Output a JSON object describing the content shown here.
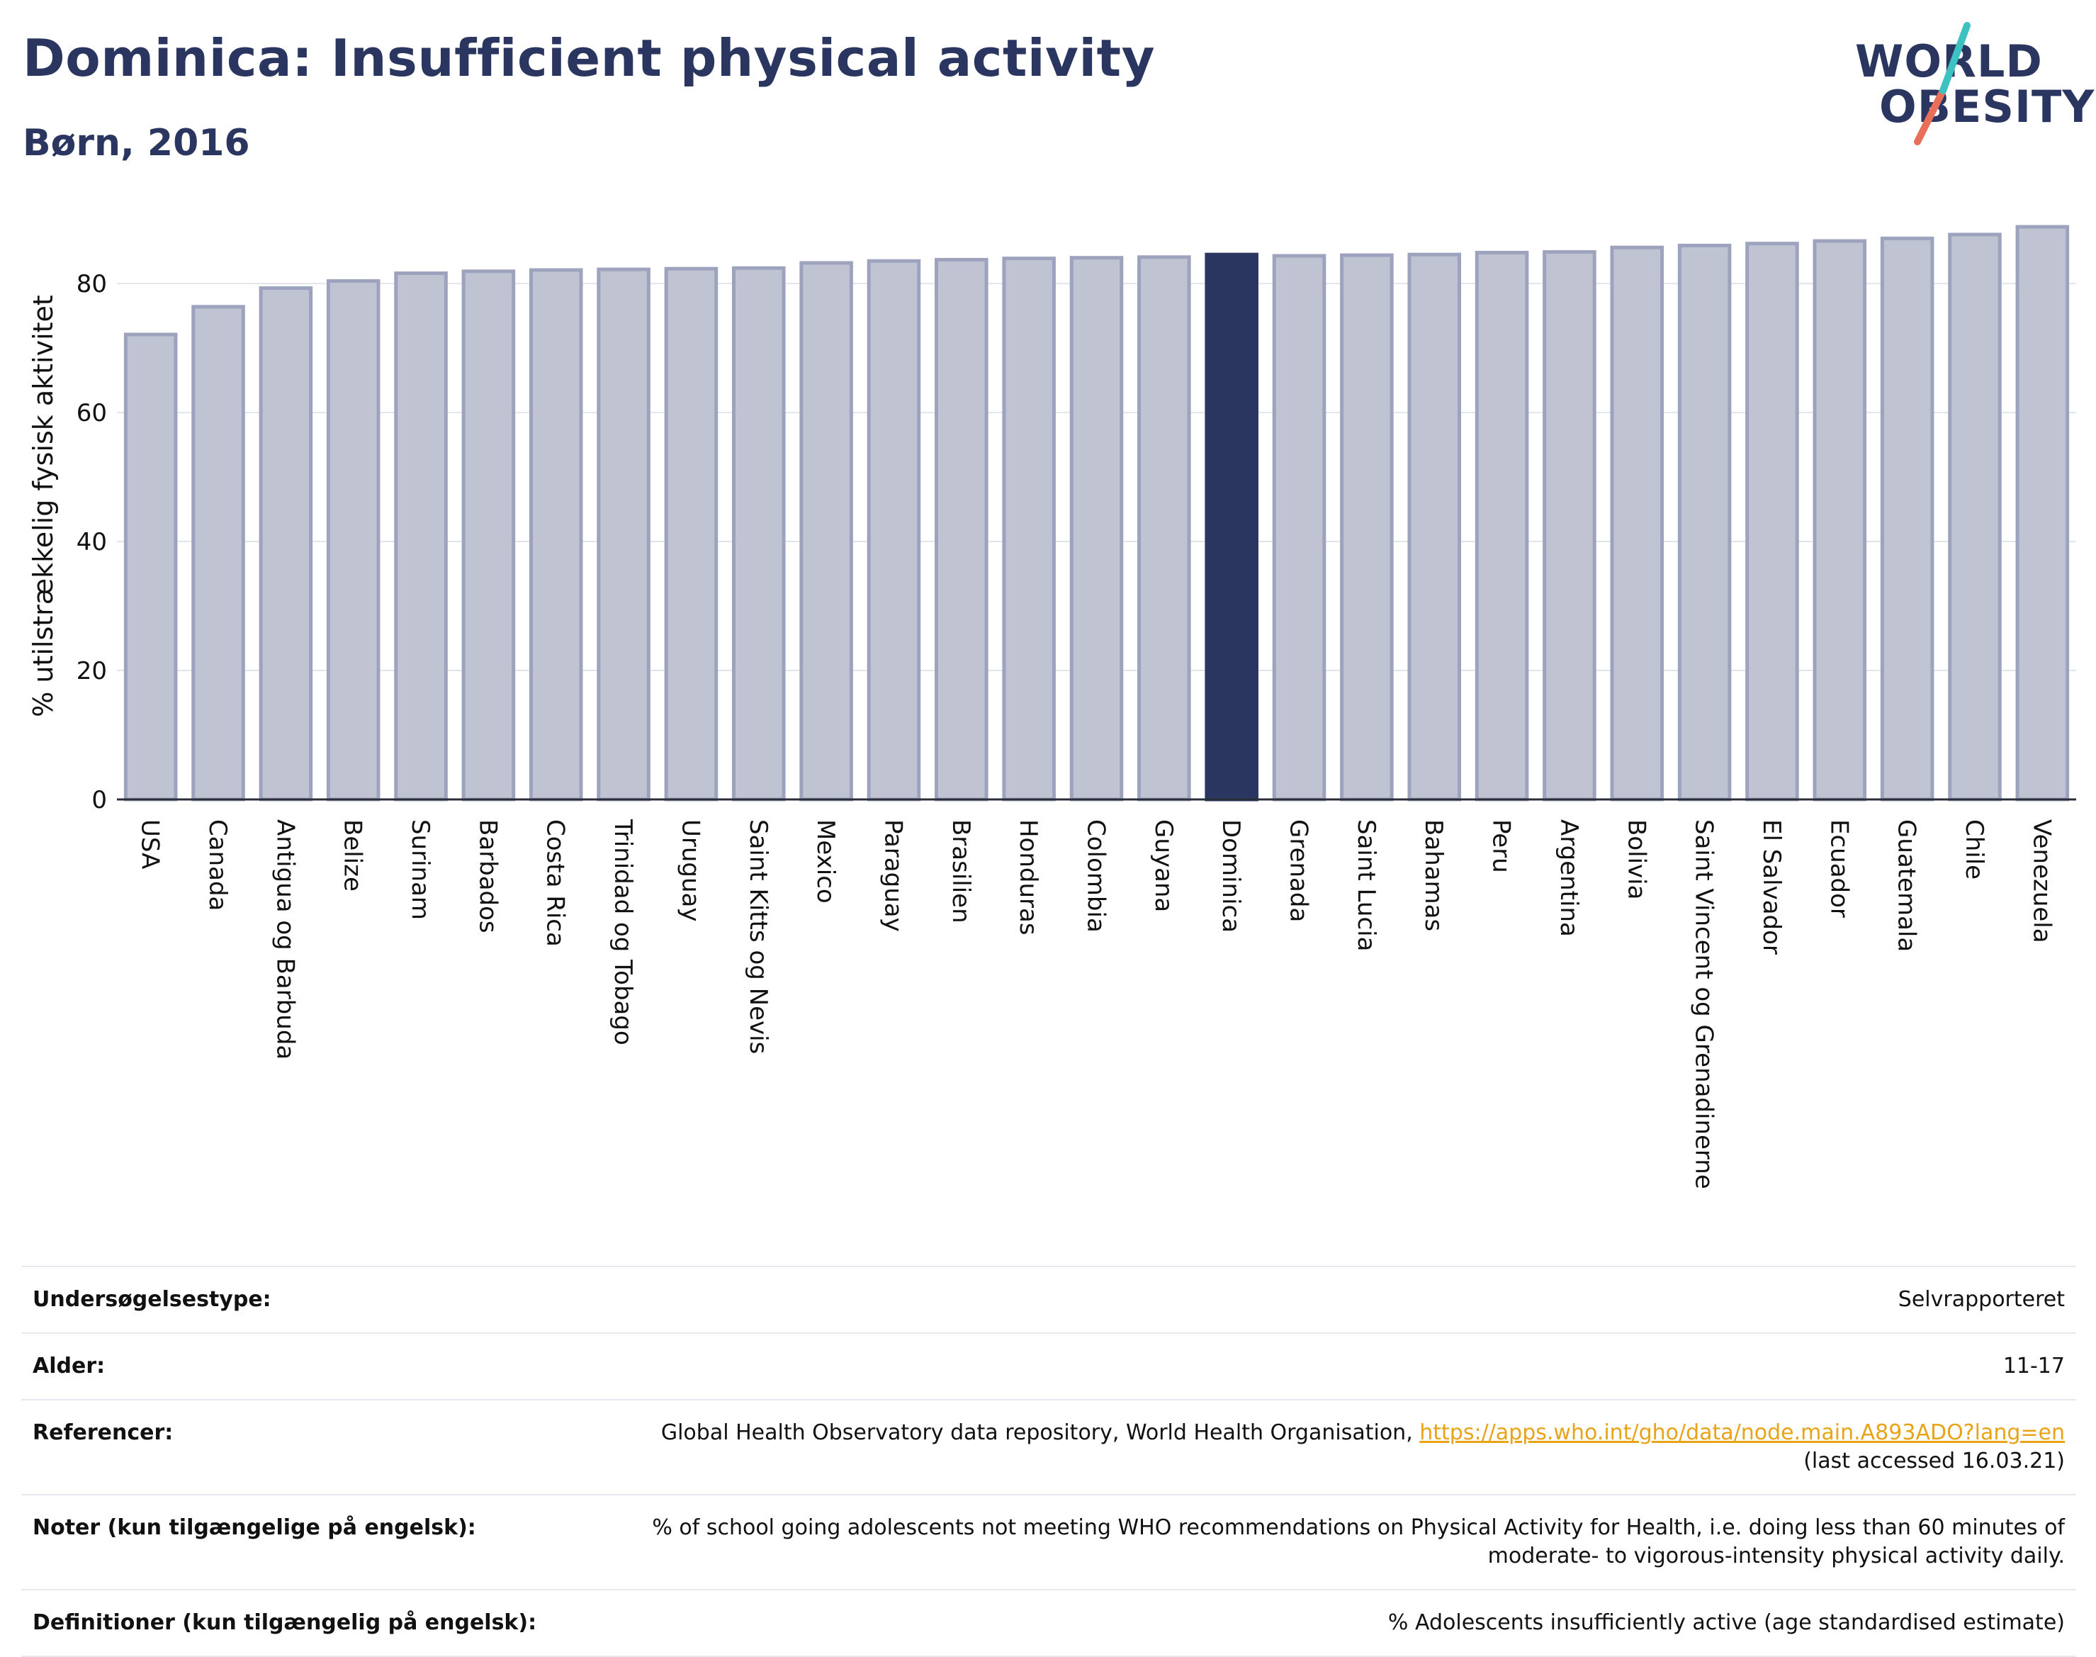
{
  "header": {
    "title": "Dominica: Insufficient physical activity",
    "subtitle": "Børn, 2016"
  },
  "logo": {
    "line1": "WORLD",
    "line2": "OBESITY",
    "colors": {
      "text": "#2a3560",
      "slash_top": "#3ec1c1",
      "slash_bottom": "#e8705a"
    }
  },
  "chart_data": {
    "type": "bar",
    "title": "Dominica: Insufficient physical activity",
    "subtitle": "Børn, 2016",
    "xlabel": "",
    "ylabel": "% utilstrækkelig fysisk aktivitet",
    "ylim": [
      0,
      91
    ],
    "yticks": [
      0,
      20,
      40,
      60,
      80
    ],
    "grid": true,
    "highlight": "Dominica",
    "colors": {
      "bar": "#bfc3d2",
      "bar_edge": "#9ea3bd",
      "highlight": "#2a3560"
    },
    "categories": [
      "USA",
      "Canada",
      "Antigua og Barbuda",
      "Belize",
      "Surinam",
      "Barbados",
      "Costa Rica",
      "Trinidad og Tobago",
      "Uruguay",
      "Saint Kitts og Nevis",
      "Mexico",
      "Paraguay",
      "Brasilien",
      "Honduras",
      "Colombia",
      "Guyana",
      "Dominica",
      "Grenada",
      "Saint Lucia",
      "Bahamas",
      "Peru",
      "Argentina",
      "Bolivia",
      "Saint Vincent og Grenadinerne",
      "El Salvador",
      "Ecuador",
      "Guatemala",
      "Chile",
      "Venezuela"
    ],
    "values": [
      72.1,
      76.4,
      79.3,
      80.4,
      81.6,
      81.9,
      82.1,
      82.2,
      82.3,
      82.4,
      83.2,
      83.5,
      83.7,
      83.9,
      84.0,
      84.1,
      84.5,
      84.3,
      84.4,
      84.5,
      84.8,
      84.9,
      85.6,
      85.9,
      86.2,
      86.6,
      87.0,
      87.6,
      88.8
    ]
  },
  "info": {
    "rows": [
      {
        "label": "Undersøgelsestype:",
        "value": "Selvrapporteret"
      },
      {
        "label": "Alder:",
        "value": "11-17"
      },
      {
        "label": "Referencer:",
        "value": "Global Health Observatory data repository, World Health Organisation, ",
        "link": "https://apps.who.int/gho/data/node.main.A893ADO?lang=en",
        "value2": "(last accessed 16.03.21)"
      },
      {
        "label": "Noter (kun tilgængelige på engelsk):",
        "value": "% of school going adolescents not meeting WHO recommendations on Physical Activity for Health, i.e. doing less than 60 minutes of moderate- to vigorous-intensity physical activity daily."
      },
      {
        "label": "Definitioner (kun tilgængelig på engelsk):",
        "value": "% Adolescents insufficiently active (age standardised estimate)"
      }
    ]
  }
}
